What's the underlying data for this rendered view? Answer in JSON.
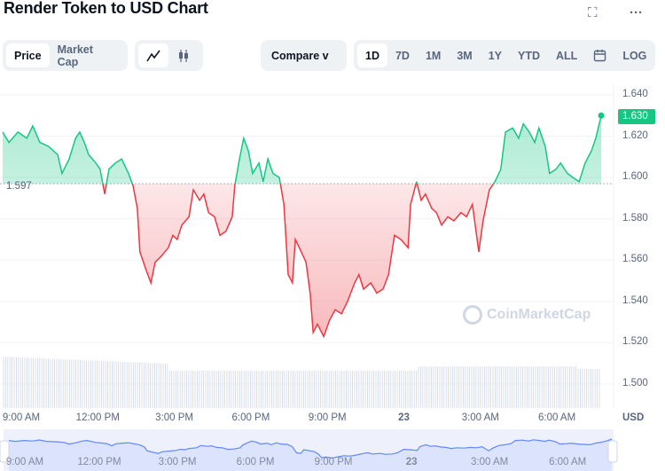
{
  "header": {
    "title": "Render Token to USD Chart",
    "fullscreen_icon": "fullscreen-icon",
    "more_icon": "more-icon"
  },
  "toolbar": {
    "metric_tabs": [
      {
        "label": "Price",
        "active": true
      },
      {
        "label": "Market Cap",
        "active": false
      }
    ],
    "chart_type": [
      {
        "icon": "line-chart-icon",
        "active": true
      },
      {
        "icon": "candlestick-icon",
        "active": false
      }
    ],
    "compare_label": "Compare v",
    "ranges": [
      {
        "label": "1D",
        "active": true
      },
      {
        "label": "7D"
      },
      {
        "label": "1M"
      },
      {
        "label": "3M"
      },
      {
        "label": "1Y"
      },
      {
        "label": "YTD"
      },
      {
        "label": "ALL"
      }
    ],
    "calendar_icon": "calendar-icon",
    "log_label": "LOG"
  },
  "watermark": "CoinMarketCap",
  "colors": {
    "up": "#16c784",
    "down": "#ea3943",
    "navigator": "#6188ff",
    "volume": "#cfd6e4"
  },
  "chart_data": {
    "type": "line",
    "title": "Render Token to USD Chart",
    "ylabel": "USD",
    "ylim": [
      1.5,
      1.64
    ],
    "yticks": [
      "1.640",
      "1.620",
      "1.600",
      "1.580",
      "1.560",
      "1.540",
      "1.520",
      "1.500"
    ],
    "xticks": [
      "9:00 AM",
      "12:00 PM",
      "3:00 PM",
      "6:00 PM",
      "9:00 PM",
      "23",
      "3:00 AM",
      "6:00 AM"
    ],
    "baseline": {
      "value": 1.597,
      "label": "1.597"
    },
    "current": {
      "value": 1.63,
      "label": "1.630"
    },
    "grid": true,
    "points": [
      [
        "22 08:16",
        1.622
      ],
      [
        "22 08:31",
        1.617
      ],
      [
        "22 08:52",
        1.622
      ],
      [
        "22 09:13",
        1.619
      ],
      [
        "22 09:27",
        1.625
      ],
      [
        "22 09:44",
        1.617
      ],
      [
        "22 10:05",
        1.615
      ],
      [
        "22 10:26",
        1.611
      ],
      [
        "22 10:36",
        1.602
      ],
      [
        "22 10:53",
        1.609
      ],
      [
        "22 11:08",
        1.619
      ],
      [
        "22 11:18",
        1.622
      ],
      [
        "22 11:29",
        1.617
      ],
      [
        "22 11:39",
        1.611
      ],
      [
        "22 11:56",
        1.607
      ],
      [
        "22 12:06",
        1.604
      ],
      [
        "22 12:17",
        1.592
      ],
      [
        "22 12:27",
        1.604
      ],
      [
        "22 12:42",
        1.607
      ],
      [
        "22 12:57",
        1.609
      ],
      [
        "22 13:13",
        1.602
      ],
      [
        "22 13:24",
        1.596
      ],
      [
        "22 13:34",
        1.585
      ],
      [
        "22 13:40",
        1.564
      ],
      [
        "22 13:55",
        1.555
      ],
      [
        "22 14:06",
        1.549
      ],
      [
        "22 14:16",
        1.559
      ],
      [
        "22 14:31",
        1.562
      ],
      [
        "22 14:47",
        1.566
      ],
      [
        "22 14:58",
        1.572
      ],
      [
        "22 15:08",
        1.57
      ],
      [
        "22 15:19",
        1.577
      ],
      [
        "22 15:36",
        1.581
      ],
      [
        "22 15:46",
        1.594
      ],
      [
        "22 16:01",
        1.589
      ],
      [
        "22 16:11",
        1.592
      ],
      [
        "22 16:22",
        1.583
      ],
      [
        "22 16:36",
        1.581
      ],
      [
        "22 16:49",
        1.572
      ],
      [
        "22 17:03",
        1.574
      ],
      [
        "22 17:18",
        1.581
      ],
      [
        "22 17:24",
        1.596
      ],
      [
        "22 17:35",
        1.609
      ],
      [
        "22 17:45",
        1.619
      ],
      [
        "22 17:56",
        1.613
      ],
      [
        "22 18:06",
        1.602
      ],
      [
        "22 18:21",
        1.607
      ],
      [
        "22 18:31",
        1.598
      ],
      [
        "22 18:42",
        1.609
      ],
      [
        "22 18:54",
        1.602
      ],
      [
        "22 19:09",
        1.6
      ],
      [
        "22 19:20",
        1.587
      ],
      [
        "22 19:30",
        1.553
      ],
      [
        "22 19:40",
        1.549
      ],
      [
        "22 19:47",
        1.57
      ],
      [
        "22 20:01",
        1.564
      ],
      [
        "22 20:12",
        1.559
      ],
      [
        "22 20:22",
        1.544
      ],
      [
        "22 20:29",
        1.525
      ],
      [
        "22 20:39",
        1.529
      ],
      [
        "22 20:54",
        1.523
      ],
      [
        "22 21:08",
        1.531
      ],
      [
        "22 21:21",
        1.536
      ],
      [
        "22 21:36",
        1.534
      ],
      [
        "22 21:50",
        1.54
      ],
      [
        "22 22:07",
        1.549
      ],
      [
        "22 22:17",
        1.553
      ],
      [
        "22 22:28",
        1.546
      ],
      [
        "22 22:45",
        1.549
      ],
      [
        "22 22:59",
        1.544
      ],
      [
        "22 23:14",
        1.546
      ],
      [
        "22 23:27",
        1.553
      ],
      [
        "22 23:41",
        1.572
      ],
      [
        "22 23:56",
        1.57
      ],
      [
        "23 00:13",
        1.566
      ],
      [
        "23 00:19",
        1.587
      ],
      [
        "23 00:33",
        1.598
      ],
      [
        "23 00:44",
        1.589
      ],
      [
        "23 00:54",
        1.592
      ],
      [
        "23 01:09",
        1.585
      ],
      [
        "23 01:20",
        1.583
      ],
      [
        "23 01:32",
        1.577
      ],
      [
        "23 01:47",
        1.581
      ],
      [
        "23 02:01",
        1.579
      ],
      [
        "23 02:18",
        1.583
      ],
      [
        "23 02:31",
        1.581
      ],
      [
        "23 02:45",
        1.587
      ],
      [
        "23 03:00",
        1.564
      ],
      [
        "23 03:10",
        1.579
      ],
      [
        "23 03:25",
        1.594
      ],
      [
        "23 03:38",
        1.598
      ],
      [
        "23 03:52",
        1.604
      ],
      [
        "23 04:03",
        1.622
      ],
      [
        "23 04:20",
        1.624
      ],
      [
        "23 04:34",
        1.619
      ],
      [
        "23 04:45",
        1.626
      ],
      [
        "23 04:59",
        1.622
      ],
      [
        "23 05:12",
        1.617
      ],
      [
        "23 05:22",
        1.624
      ],
      [
        "23 05:37",
        1.615
      ],
      [
        "23 05:47",
        1.602
      ],
      [
        "23 06:02",
        1.604
      ],
      [
        "23 06:13",
        1.607
      ],
      [
        "23 06:29",
        1.602
      ],
      [
        "23 06:42",
        1.6
      ],
      [
        "23 06:57",
        1.598
      ],
      [
        "23 07:11",
        1.607
      ],
      [
        "23 07:26",
        1.613
      ],
      [
        "23 07:36",
        1.619
      ],
      [
        "23 07:49",
        1.63
      ]
    ]
  }
}
